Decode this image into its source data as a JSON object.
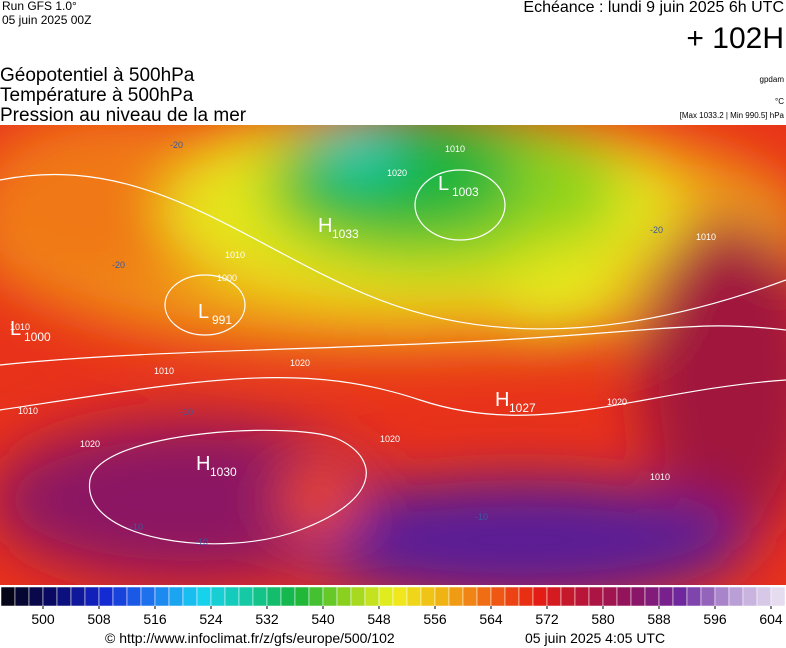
{
  "header": {
    "run": "Run GFS 1.0°",
    "run_date": "05 juin 2025 00Z",
    "valid": "Echéance : lundi 9 juin 2025 6h UTC",
    "lead": "+ 102H",
    "titles": [
      "Géopotentiel à 500hPa",
      "Température à 500hPa",
      "Pression au niveau de la mer"
    ],
    "units": [
      "gpdam",
      "°C",
      "[Max 1033.2 | Min 990.5] hPa"
    ]
  },
  "map": {
    "pressure_centers": [
      {
        "letter": "H",
        "value": 1033
      },
      {
        "letter": "L",
        "value": 1003
      },
      {
        "letter": "L",
        "value": 991
      },
      {
        "letter": "H",
        "value": 1027
      },
      {
        "letter": "H",
        "value": 1030
      },
      {
        "letter": "L",
        "value": 1000
      }
    ],
    "isobar_labels": [
      1010,
      1020,
      1000,
      1010,
      1020,
      1010,
      1020,
      1010,
      1020,
      1010,
      1010,
      1020,
      1010
    ],
    "temperature_labels": [
      -20,
      -20,
      -10,
      -10,
      -10,
      -10,
      -20
    ]
  },
  "colorbar": {
    "ticks": [
      500,
      508,
      516,
      524,
      532,
      540,
      548,
      556,
      564,
      572,
      580,
      588,
      596,
      604
    ],
    "start": 494,
    "step": 2,
    "count": 56,
    "palette": [
      "#05051a",
      "#0a0a6e",
      "#1428d2",
      "#1e78f0",
      "#18d2f0",
      "#14c8a0",
      "#14b43c",
      "#8cd21e",
      "#f0f01e",
      "#f0b414",
      "#f06414",
      "#e61e14",
      "#b4143c",
      "#8c1464",
      "#6e28a0",
      "#b496d2",
      "#e6dcf0"
    ]
  },
  "footer": {
    "url": "© http://www.infoclimat.fr/z/gfs/europe/500/102",
    "date": "05 juin 2025  4:05 UTC"
  }
}
